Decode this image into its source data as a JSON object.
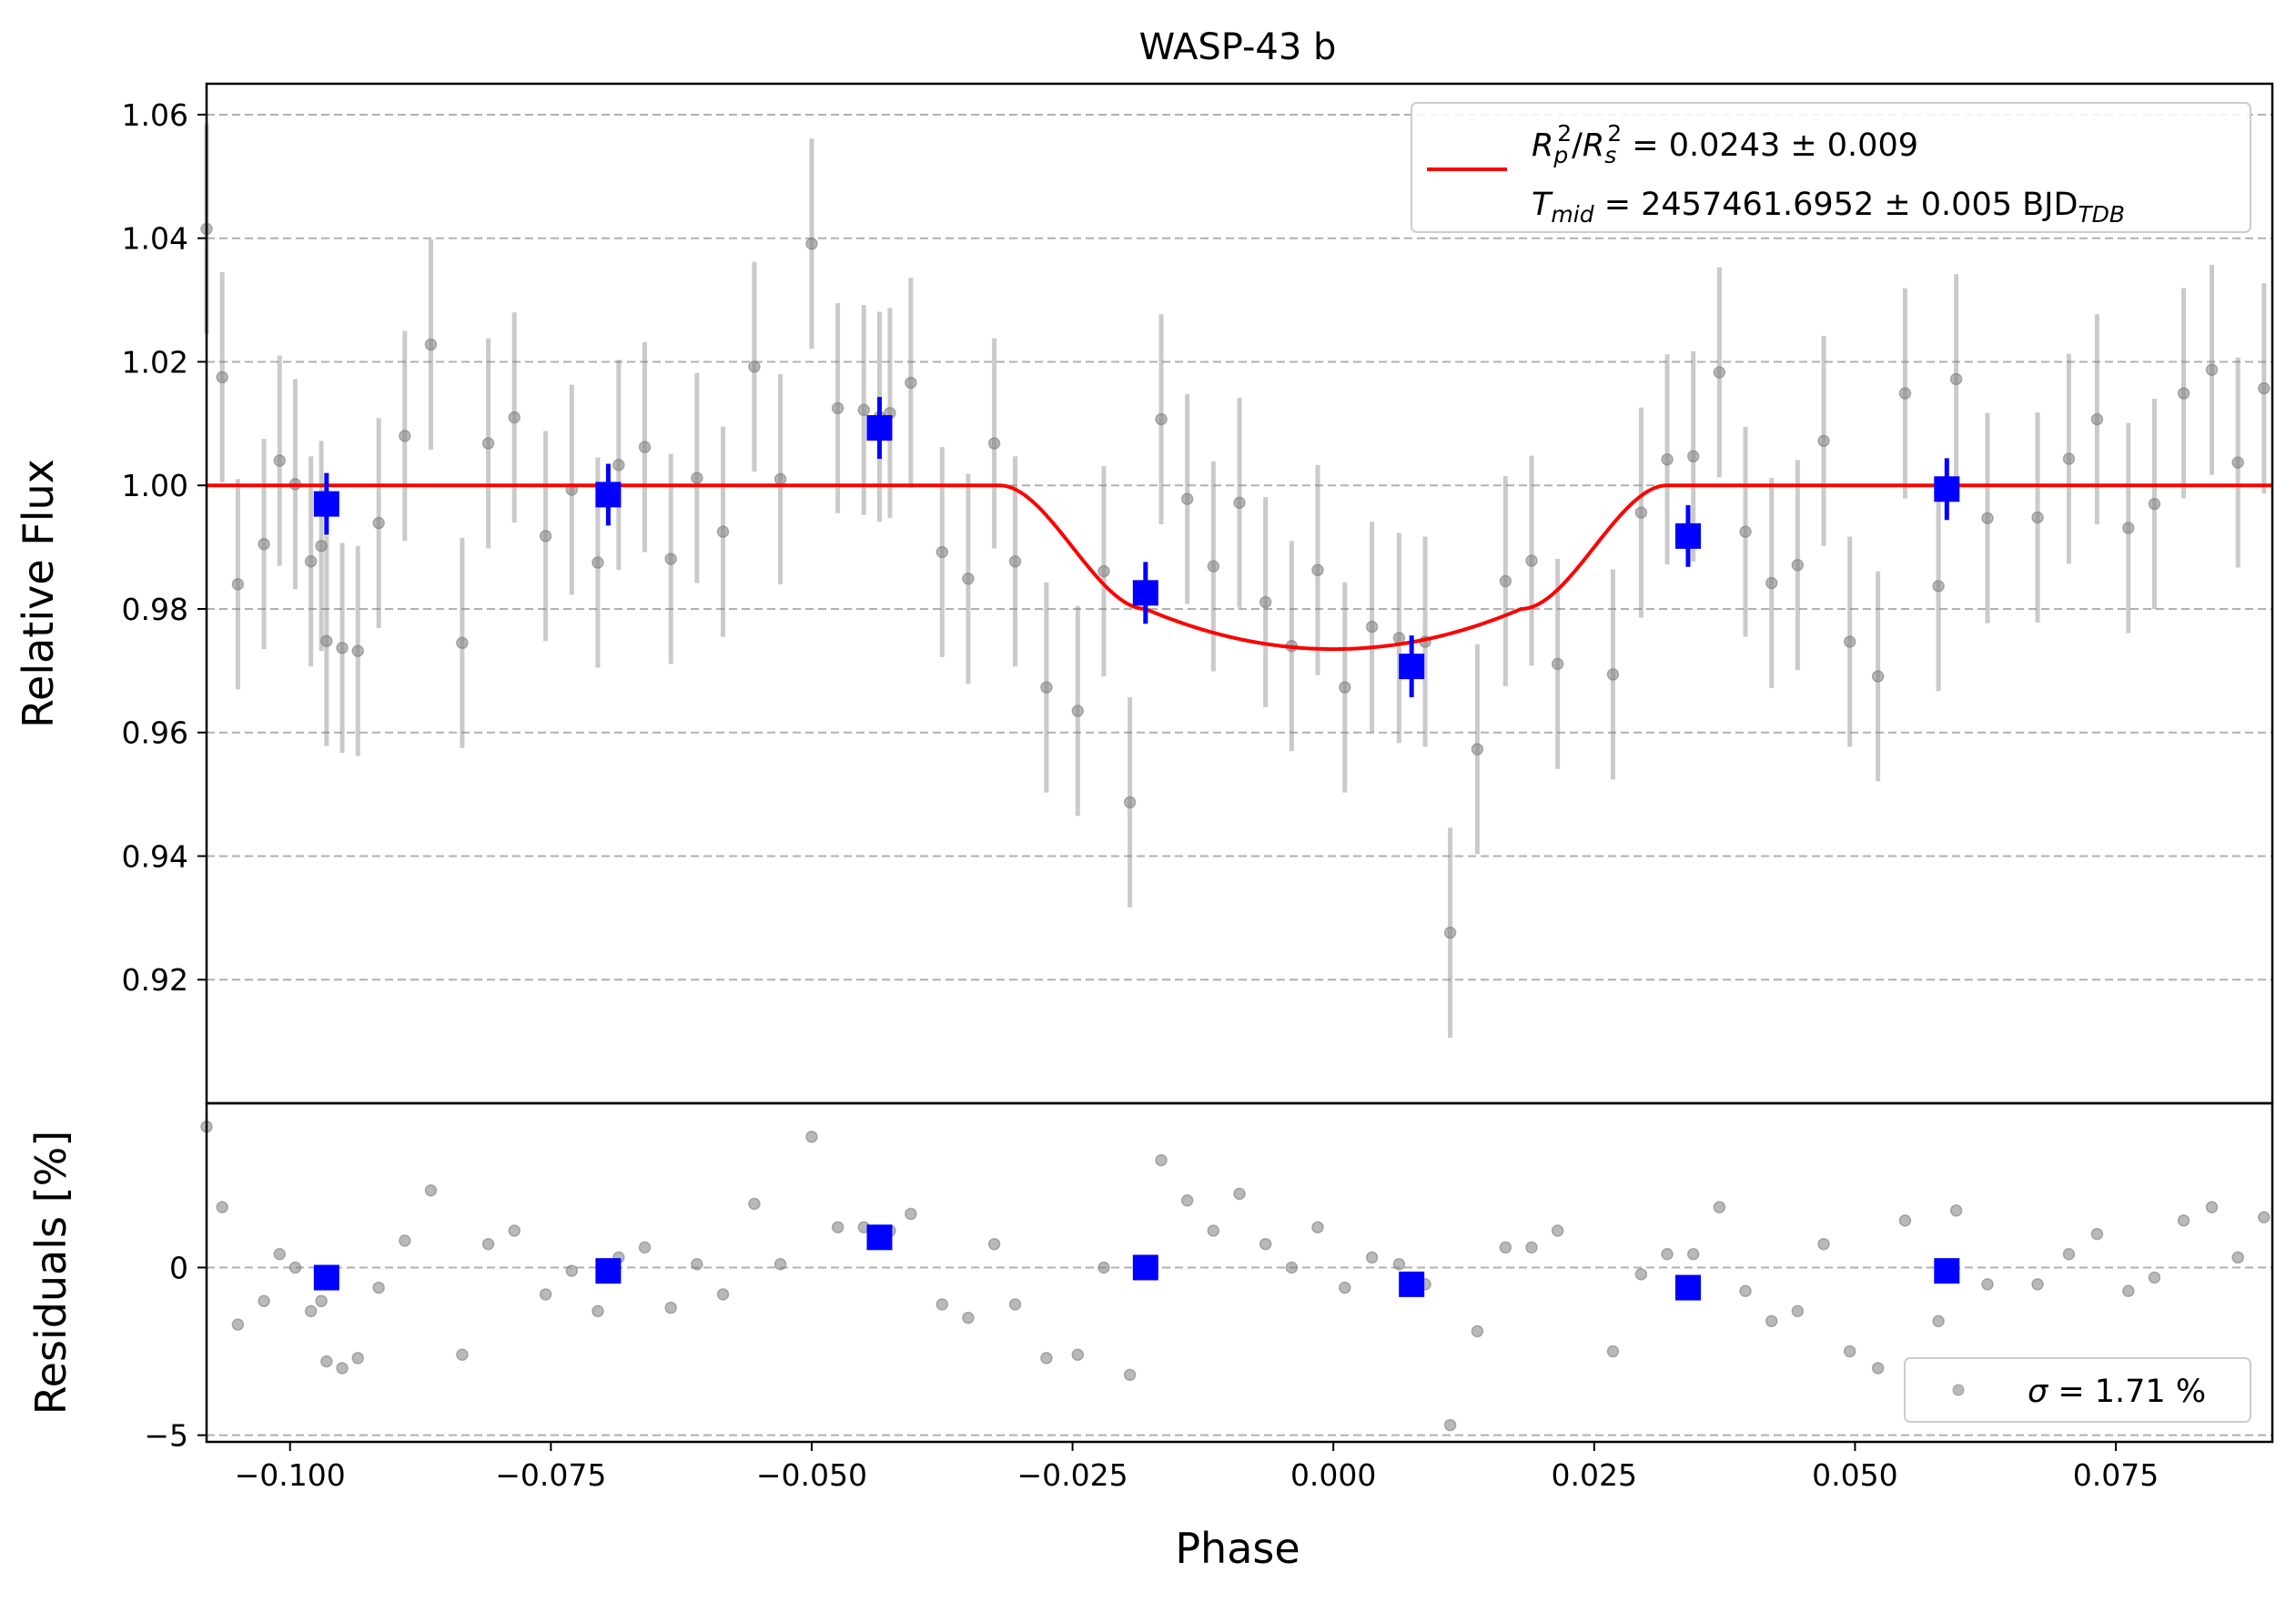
{
  "chart_data": [
    {
      "type": "scatter",
      "title": "WASP-43 b",
      "xlabel": "",
      "ylabel": "Relative Flux",
      "xlim": [
        -0.108,
        0.09
      ],
      "ylim": [
        0.9,
        1.065
      ],
      "grid": "horizontal-dashed",
      "legend_position": "top-right",
      "yticks": [
        0.92,
        0.94,
        0.96,
        0.98,
        1.0,
        1.02,
        1.04,
        1.06
      ],
      "ytick_labels": [
        "0.92",
        "0.94",
        "0.96",
        "0.98",
        "1.00",
        "1.02",
        "1.04",
        "1.06"
      ],
      "legend": {
        "line1": {
          "R": "R",
          "p": "p",
          "slash": "/",
          "R2": "R",
          "s": "s",
          "sup": "2",
          "rest": " = 0.0243 ± 0.009"
        },
        "line2": {
          "T": "T",
          "mid": "mid",
          "rest": " = 2457461.6952 ± 0.005 BJD",
          "tdb": "TDB"
        }
      },
      "model": {
        "name": "transit model",
        "color": "#ff0000",
        "depth": 0.0265,
        "t1": -0.032,
        "t2": -0.018,
        "t3": 0.018,
        "t4": 0.032,
        "ingress_level": 0.98,
        "x": [
          -0.108,
          -0.032,
          -0.03,
          -0.027,
          -0.024,
          -0.021,
          -0.018,
          -0.012,
          -0.006,
          0.0,
          0.006,
          0.012,
          0.018,
          0.021,
          0.024,
          0.027,
          0.03,
          0.032,
          0.09
        ],
        "y": [
          1.0,
          1.0,
          0.9993,
          0.9965,
          0.9925,
          0.987,
          0.9805,
          0.9765,
          0.9743,
          0.9735,
          0.9743,
          0.9765,
          0.9805,
          0.987,
          0.9925,
          0.9965,
          0.9993,
          1.0,
          1.0
        ]
      },
      "raw_points": {
        "color": "#808080",
        "err": 0.017,
        "x": [
          -0.108,
          -0.1065,
          -0.105,
          -0.1025,
          -0.101,
          -0.0995,
          -0.098,
          -0.097,
          -0.0965,
          -0.095,
          -0.0935,
          -0.0915,
          -0.089,
          -0.0865,
          -0.0835,
          -0.081,
          -0.0785,
          -0.0755,
          -0.073,
          -0.0705,
          -0.0685,
          -0.066,
          -0.0635,
          -0.061,
          -0.0585,
          -0.0555,
          -0.053,
          -0.05,
          -0.0475,
          -0.045,
          -0.0435,
          -0.0425,
          -0.0405,
          -0.0375,
          -0.035,
          -0.0325,
          -0.0305,
          -0.0275,
          -0.0245,
          -0.022,
          -0.0195,
          -0.0165,
          -0.014,
          -0.0115,
          -0.009,
          -0.0065,
          -0.004,
          -0.0015,
          0.0011,
          0.0037,
          0.0063,
          0.0088,
          0.0112,
          0.0138,
          0.0165,
          0.019,
          0.0215,
          0.0268,
          0.0295,
          0.032,
          0.0345,
          0.037,
          0.0395,
          0.042,
          0.0445,
          0.047,
          0.0495,
          0.0522,
          0.0548,
          0.058,
          0.0597,
          0.0627,
          0.0675,
          0.0705,
          0.0732,
          0.0762,
          0.0787,
          0.0815,
          0.0842,
          0.0867,
          0.0892
        ],
        "y": [
          1.0415,
          1.0175,
          0.984,
          0.9905,
          1.004,
          1.0002,
          0.9877,
          0.9902,
          0.9748,
          0.9737,
          0.9732,
          0.9939,
          1.008,
          1.0228,
          0.9745,
          1.0068,
          1.011,
          0.9918,
          0.9993,
          0.9875,
          1.0033,
          1.0062,
          0.9881,
          1.0012,
          0.9925,
          1.0192,
          1.001,
          1.0391,
          1.0125,
          1.0122,
          1.0111,
          1.0117,
          1.0166,
          0.9892,
          0.9849,
          1.0068,
          0.9877,
          0.9673,
          0.9635,
          0.9861,
          0.9487,
          1.0107,
          0.9978,
          0.9869,
          0.9972,
          0.9811,
          0.974,
          0.9863,
          0.9673,
          0.9771,
          0.9753,
          0.9747,
          0.9276,
          0.9573,
          0.9845,
          0.9878,
          0.9711,
          0.9694,
          0.9956,
          1.0042,
          1.0047,
          1.0183,
          0.9925,
          0.9842,
          0.9871,
          1.0072,
          0.9747,
          0.9691,
          1.0149,
          0.9837,
          1.0172,
          0.9947,
          0.9948,
          1.0043,
          1.0107,
          0.9931,
          0.997,
          1.0149,
          1.0187,
          1.0037,
          1.0157
        ]
      },
      "binned_points": {
        "color": "#0000ff",
        "err": 0.005,
        "x": [
          -0.0965,
          -0.0695,
          -0.0435,
          -0.018,
          0.0075,
          0.034,
          0.0588
        ],
        "y": [
          0.997,
          0.9985,
          1.0093,
          0.9826,
          0.9707,
          0.9918,
          0.9994
        ]
      }
    },
    {
      "type": "scatter",
      "title": "",
      "xlabel": "Phase",
      "ylabel": "Residuals [%]",
      "xlim": [
        -0.108,
        0.09
      ],
      "ylim": [
        -5.2,
        4.9
      ],
      "grid": "horizontal-dashed",
      "legend_position": "bottom-right",
      "xticks": [
        -0.1,
        -0.075,
        -0.05,
        -0.025,
        0.0,
        0.025,
        0.05,
        0.075
      ],
      "xtick_labels": [
        "−0.100",
        "−0.075",
        "−0.050",
        "−0.025",
        "0.000",
        "0.025",
        "0.050",
        "0.075"
      ],
      "yticks": [
        -5,
        0
      ],
      "ytick_labels": [
        "−5",
        "0"
      ],
      "legend": {
        "sigma": "σ",
        "rest": " = 1.71 %"
      },
      "raw_points": {
        "color": "#808080",
        "x": [
          -0.108,
          -0.1065,
          -0.105,
          -0.1025,
          -0.101,
          -0.0995,
          -0.098,
          -0.097,
          -0.0965,
          -0.095,
          -0.0935,
          -0.0915,
          -0.089,
          -0.0865,
          -0.0835,
          -0.081,
          -0.0785,
          -0.0755,
          -0.073,
          -0.0705,
          -0.0685,
          -0.066,
          -0.0635,
          -0.061,
          -0.0585,
          -0.0555,
          -0.053,
          -0.05,
          -0.0475,
          -0.045,
          -0.0435,
          -0.0425,
          -0.0405,
          -0.0375,
          -0.035,
          -0.0325,
          -0.0305,
          -0.0275,
          -0.0245,
          -0.022,
          -0.0195,
          -0.0165,
          -0.014,
          -0.0115,
          -0.009,
          -0.0065,
          -0.004,
          -0.0015,
          0.0011,
          0.0037,
          0.0063,
          0.0088,
          0.0112,
          0.0138,
          0.0165,
          0.019,
          0.0215,
          0.0268,
          0.0295,
          0.032,
          0.0345,
          0.037,
          0.0395,
          0.042,
          0.0445,
          0.047,
          0.0495,
          0.0522,
          0.0548,
          0.058,
          0.0597,
          0.0627,
          0.0675,
          0.0705,
          0.0732,
          0.0762,
          0.0787,
          0.0815,
          0.0842,
          0.0867,
          0.0892
        ],
        "y": [
          4.2,
          1.8,
          -1.7,
          -1.0,
          0.4,
          0.0,
          -1.3,
          -1.0,
          -2.8,
          -3.0,
          -2.7,
          -0.6,
          0.8,
          2.3,
          -2.6,
          0.7,
          1.1,
          -0.8,
          -0.1,
          -1.3,
          0.3,
          0.6,
          -1.2,
          0.1,
          -0.8,
          1.9,
          0.1,
          3.9,
          1.2,
          1.2,
          1.1,
          1.1,
          1.6,
          -1.1,
          -1.5,
          0.7,
          -1.1,
          -2.7,
          -2.6,
          0.0,
          -3.2,
          3.2,
          2.0,
          1.1,
          2.2,
          0.7,
          0.0,
          1.2,
          -0.6,
          0.3,
          0.1,
          -0.5,
          -4.7,
          -1.9,
          0.6,
          0.6,
          1.1,
          -2.5,
          -0.2,
          0.4,
          0.4,
          1.8,
          -0.7,
          -1.6,
          -1.3,
          0.7,
          -2.5,
          -3.0,
          1.4,
          -1.6,
          1.7,
          -0.5,
          -0.5,
          0.4,
          1.0,
          -0.7,
          -0.3,
          1.4,
          1.8,
          0.3,
          1.5
        ]
      },
      "binned_points": {
        "color": "#0000ff",
        "x": [
          -0.0965,
          -0.0695,
          -0.0435,
          -0.018,
          0.0075,
          0.034,
          0.0588
        ],
        "y": [
          -0.3,
          -0.1,
          0.9,
          0.0,
          -0.5,
          -0.6,
          -0.1
        ]
      }
    }
  ]
}
